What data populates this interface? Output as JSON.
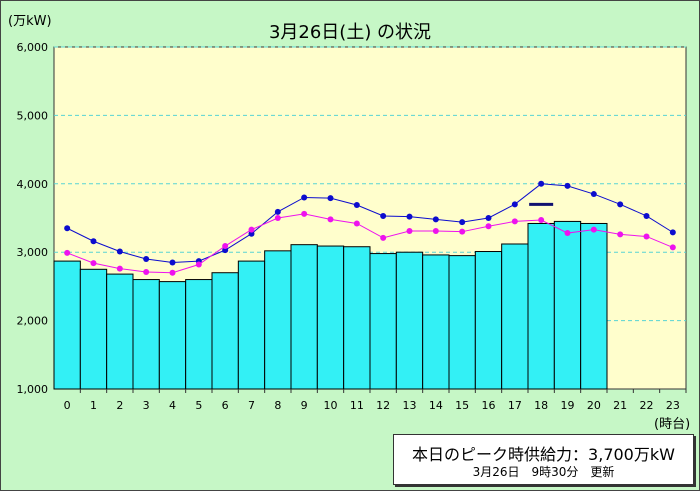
{
  "header": {
    "title": "3月26日(土) の状況",
    "y_unit": "(万kW)",
    "x_unit": "(時台)"
  },
  "info": {
    "peak_supply": "本日のピーク時供給力：3,700万kW",
    "updated": "3月26日　9時30分　更新"
  },
  "colors": {
    "plot_bg": "#fffecc",
    "bar_fill": "#33f0f5",
    "bar_stroke": "#000000",
    "line_blue": "#0c0cce",
    "line_magenta": "#ee12ee",
    "peak_marker": "#101070",
    "grid": "#58d4d4"
  },
  "chart_data": {
    "type": "bar",
    "categories": [
      "0",
      "1",
      "2",
      "3",
      "4",
      "5",
      "6",
      "7",
      "8",
      "9",
      "10",
      "11",
      "12",
      "13",
      "14",
      "15",
      "16",
      "17",
      "18",
      "19",
      "20",
      "21",
      "22",
      "23"
    ],
    "ylim": [
      1000,
      6000
    ],
    "yticks": [
      "1,000",
      "2,000",
      "3,000",
      "4,000",
      "5,000",
      "6,000"
    ],
    "ytick_values": [
      1000,
      2000,
      3000,
      4000,
      5000,
      6000
    ],
    "grid": true,
    "series": [
      {
        "type": "bar",
        "values": [
          2870,
          2750,
          2680,
          2600,
          2570,
          2600,
          2700,
          2870,
          3020,
          3110,
          3090,
          3080,
          2980,
          3000,
          2960,
          2950,
          3010,
          3120,
          3420,
          3450,
          3420,
          null,
          null,
          null
        ]
      },
      {
        "type": "line",
        "color_key": "line_blue",
        "values": [
          3350,
          3160,
          3010,
          2900,
          2850,
          2870,
          3030,
          3270,
          3590,
          3800,
          3790,
          3690,
          3530,
          3520,
          3480,
          3440,
          3500,
          3700,
          4000,
          3970,
          3850,
          3700,
          3530,
          3290
        ]
      },
      {
        "type": "line",
        "color_key": "line_magenta",
        "values": [
          2990,
          2840,
          2760,
          2710,
          2700,
          2820,
          3090,
          3330,
          3500,
          3560,
          3480,
          3420,
          3210,
          3310,
          3310,
          3300,
          3380,
          3450,
          3470,
          3280,
          3330,
          3260,
          3230,
          3070
        ]
      }
    ],
    "peak_marker": {
      "x": "18",
      "value": 3700
    }
  }
}
